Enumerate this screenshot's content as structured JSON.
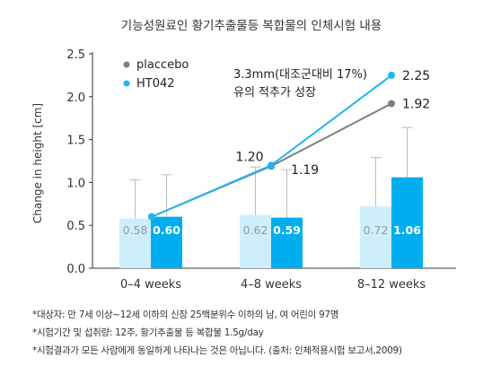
{
  "chart_data": {
    "type": "bar",
    "title": "기능성원료인 황기추출물등 복합물의 인체시험 내용",
    "xlabel": "",
    "ylabel": "Change in height [cm]",
    "ylim": [
      0,
      2.5
    ],
    "yticks": [
      "0.0",
      "0.5",
      "1.0",
      "1.5",
      "2.0",
      "2.5"
    ],
    "categories": [
      "0–4 weeks",
      "4–8 weeks",
      "8–12 weeks"
    ],
    "series": [
      {
        "name": "placcebo",
        "values": [
          0.58,
          0.62,
          0.72
        ],
        "error_upper": [
          1.03,
          1.18,
          1.29
        ],
        "color_bar": "#cdeefb",
        "color_marker": "#7f7f7f",
        "value_labels": [
          "0.58",
          "0.62",
          "0.72"
        ],
        "cumulative": [
          0.6,
          1.19,
          1.92
        ],
        "cumulative_labels": [
          "",
          "1.19",
          "1.92"
        ]
      },
      {
        "name": "HT042",
        "values": [
          0.6,
          0.59,
          1.06
        ],
        "error_upper": [
          1.09,
          1.15,
          1.64
        ],
        "color_bar": "#00aeef",
        "color_marker": "#1fb6f0",
        "value_labels": [
          "0.60",
          "0.59",
          "1.06"
        ],
        "cumulative": [
          0.6,
          1.2,
          2.25
        ],
        "cumulative_labels": [
          "",
          "1.20",
          "2.25"
        ]
      }
    ],
    "legend_position": "top-left",
    "grid": false,
    "annotation": [
      "3.3mm(대조군대비 17%)",
      "유의 적추가 성장"
    ]
  },
  "footnotes": [
    "*대상자: 만 7세 이상~12세 이하의 신장 25백분위수 이하의 남, 여 어린이 97명",
    "*시험기간 및 섭취량: 12주, 황기추출물 등 복합물 1.5g/day",
    "*시험결과가 모든 사람에게 동일하게 나타나는 것은 아닙니다. (출처: 인체적용시험 보고서,2009)"
  ]
}
